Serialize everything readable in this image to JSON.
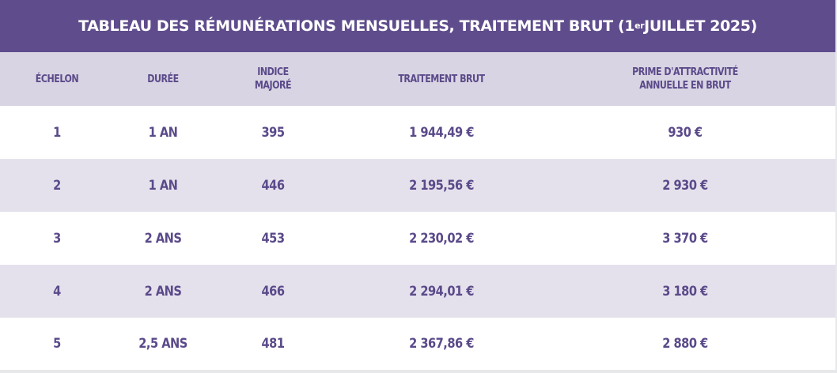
{
  "title": {
    "main": "TABLEAU DES RÉMUNÉRATIONS MENSUELLES, TRAITEMENT BRUT (1",
    "superscript": "er",
    "suffix": " JUILLET 2025)"
  },
  "columns": {
    "echelon": "ÉCHELON",
    "duree": "DURÉE",
    "indice_line1": "INDICE",
    "indice_line2": "MAJORÉ",
    "traitement": "TRAITEMENT BRUT",
    "prime_line1": "PRIME D'ATTRACTIVITÉ",
    "prime_line2": "ANNUELLE EN BRUT"
  },
  "rows": [
    {
      "echelon": "1",
      "duree": "1 AN",
      "indice": "395",
      "traitement": "1 944,49 €",
      "prime": "930 €"
    },
    {
      "echelon": "2",
      "duree": "1 AN",
      "indice": "446",
      "traitement": "2 195,56 €",
      "prime": "2 930 €"
    },
    {
      "echelon": "3",
      "duree": "2 ANS",
      "indice": "453",
      "traitement": "2 230,02 €",
      "prime": "3 370 €"
    },
    {
      "echelon": "4",
      "duree": "2 ANS",
      "indice": "466",
      "traitement": "2 294,01 €",
      "prime": "3 180 €"
    },
    {
      "echelon": "5",
      "duree": "2,5 ANS",
      "indice": "481",
      "traitement": "2 367,86 €",
      "prime": "2 880 €"
    }
  ],
  "colors": {
    "title_background": "#5f4c8c",
    "header_background": "#d9d4e3",
    "stripe_background": "#e5e1ec",
    "text": "#5a4a8a"
  }
}
